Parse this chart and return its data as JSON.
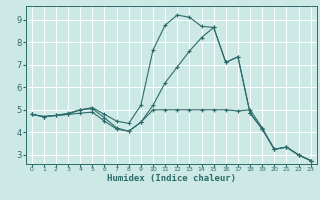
{
  "xlabel": "Humidex (Indice chaleur)",
  "xlim": [
    -0.5,
    23.5
  ],
  "ylim": [
    2.6,
    9.6
  ],
  "xticks": [
    0,
    1,
    2,
    3,
    4,
    5,
    6,
    7,
    8,
    9,
    10,
    11,
    12,
    13,
    14,
    15,
    16,
    17,
    18,
    19,
    20,
    21,
    22,
    23
  ],
  "yticks": [
    3,
    4,
    5,
    6,
    7,
    8,
    9
  ],
  "background_color": "#cce9e5",
  "grid_color": "#ffffff",
  "line_color": "#2d6b6b",
  "line1_x": [
    0,
    1,
    2,
    3,
    4,
    5,
    6,
    7,
    8,
    9,
    10,
    11,
    12,
    13,
    14,
    15,
    16,
    17,
    18,
    19,
    20,
    21,
    22,
    23
  ],
  "line1_y": [
    4.8,
    4.7,
    4.75,
    4.8,
    4.85,
    4.9,
    4.5,
    4.15,
    4.05,
    4.45,
    5.0,
    5.0,
    5.0,
    5.0,
    5.0,
    5.0,
    5.0,
    4.95,
    5.0,
    4.2,
    3.25,
    3.35,
    3.0,
    2.75
  ],
  "line2_x": [
    0,
    1,
    2,
    3,
    4,
    5,
    6,
    7,
    8,
    9,
    10,
    11,
    12,
    13,
    14,
    15,
    16,
    17,
    18,
    19,
    20,
    21,
    22,
    23
  ],
  "line2_y": [
    4.8,
    4.7,
    4.75,
    4.8,
    5.0,
    5.1,
    4.8,
    4.5,
    4.4,
    5.2,
    7.65,
    8.75,
    9.2,
    9.1,
    8.7,
    8.65,
    7.1,
    7.35,
    4.85,
    4.15,
    3.25,
    3.35,
    3.0,
    2.75
  ],
  "line3_x": [
    0,
    1,
    2,
    3,
    4,
    5,
    6,
    7,
    8,
    9,
    10,
    11,
    12,
    13,
    14,
    15,
    16,
    17,
    18,
    19,
    20,
    21,
    22,
    23
  ],
  "line3_y": [
    4.8,
    4.7,
    4.75,
    4.85,
    5.0,
    5.05,
    4.65,
    4.2,
    4.05,
    4.45,
    5.2,
    6.2,
    6.9,
    7.6,
    8.2,
    8.65,
    7.1,
    7.35,
    4.85,
    4.15,
    3.25,
    3.35,
    3.0,
    2.75
  ]
}
